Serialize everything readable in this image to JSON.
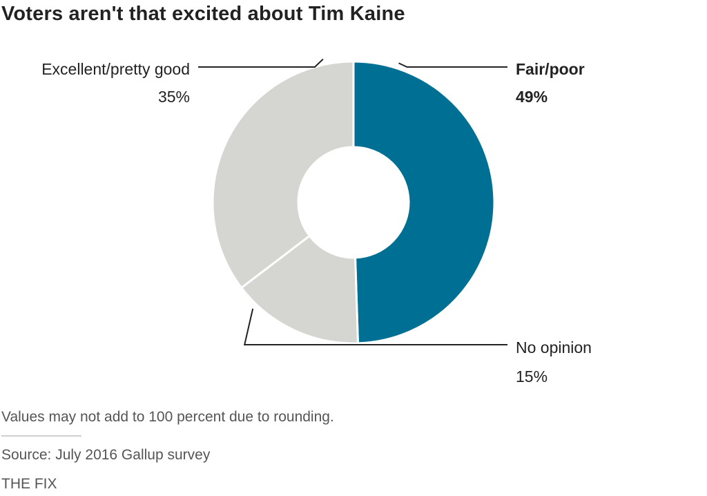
{
  "chart_data": {
    "type": "pie",
    "style": "donut",
    "title": "Voters aren't that excited about Tim Kaine",
    "slices": [
      {
        "label": "Fair/poor",
        "value": 49,
        "value_label": "49%",
        "color": "#006f94",
        "highlight": true
      },
      {
        "label": "No opinion",
        "value": 15,
        "value_label": "15%",
        "color": "#d5d5d2",
        "highlight": false
      },
      {
        "label": "Excellent/pretty good",
        "value": 35,
        "value_label": "35%",
        "color": "#d5d5d2",
        "highlight": false
      }
    ],
    "start": "12 o'clock, clockwise",
    "note": "Values may not add to 100 percent due to rounding."
  },
  "footer": {
    "source": "Source: July 2016 Gallup survey",
    "credit": "THE FIX"
  }
}
